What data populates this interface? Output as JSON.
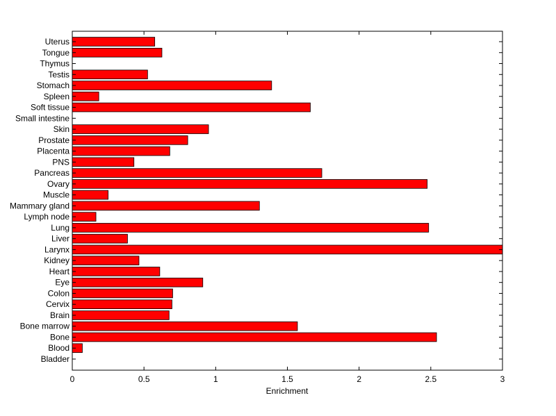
{
  "chart_data": {
    "type": "bar",
    "orientation": "horizontal",
    "xlabel": "Enrichment",
    "ylabel": "",
    "title": "",
    "xlim": [
      0,
      3
    ],
    "xticks": [
      0,
      0.5,
      1,
      1.5,
      2,
      2.5,
      3
    ],
    "xtick_labels": [
      "0",
      "0.5",
      "1",
      "1.5",
      "2",
      "2.5",
      "3"
    ],
    "grid": false,
    "bar_color": "#ff0000",
    "bar_edge_color": "#000000",
    "categories": [
      "Bladder",
      "Blood",
      "Bone",
      "Bone marrow",
      "Brain",
      "Cervix",
      "Colon",
      "Eye",
      "Heart",
      "Kidney",
      "Larynx",
      "Liver",
      "Lung",
      "Lymph node",
      "Mammary gland",
      "Muscle",
      "Ovary",
      "Pancreas",
      "PNS",
      "Placenta",
      "Prostate",
      "Skin",
      "Small intestine",
      "Soft tissue",
      "Spleen",
      "Stomach",
      "Testis",
      "Thymus",
      "Tongue",
      "Uterus"
    ],
    "values": [
      0,
      0.07,
      2.54,
      1.57,
      0.675,
      0.695,
      0.7,
      0.91,
      0.61,
      0.465,
      3.0,
      0.385,
      2.485,
      0.165,
      1.305,
      0.25,
      2.475,
      1.74,
      0.43,
      0.68,
      0.805,
      0.95,
      0,
      1.66,
      0.185,
      1.39,
      0.525,
      0,
      0.625,
      0.575
    ]
  }
}
